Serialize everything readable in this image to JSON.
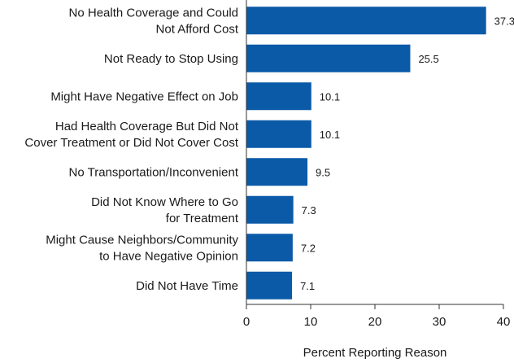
{
  "chart_data": {
    "type": "bar",
    "orientation": "horizontal",
    "title": "",
    "xlabel": "Percent Reporting Reason",
    "ylabel": "",
    "xlim": [
      0,
      40
    ],
    "xticks": [
      0,
      10,
      20,
      30,
      40
    ],
    "grid": false,
    "bar_color": "#0b5aa8",
    "categories": [
      [
        "No Health Coverage and Could",
        "Not Afford Cost"
      ],
      [
        "Not Ready to Stop Using"
      ],
      [
        "Might Have Negative Effect on Job"
      ],
      [
        "Had Health Coverage But Did Not",
        "Cover Treatment or Did Not Cover Cost"
      ],
      [
        "No Transportation/Inconvenient"
      ],
      [
        "Did Not Know Where to Go",
        "for Treatment"
      ],
      [
        "Might Cause Neighbors/Community",
        "to Have Negative Opinion"
      ],
      [
        "Did Not Have Time"
      ]
    ],
    "values": [
      37.3,
      25.5,
      10.1,
      10.1,
      9.5,
      7.3,
      7.2,
      7.1
    ],
    "value_labels": [
      "37.3",
      "25.5",
      "10.1",
      "10.1",
      "9.5",
      "7.3",
      "7.2",
      "7.1"
    ]
  }
}
